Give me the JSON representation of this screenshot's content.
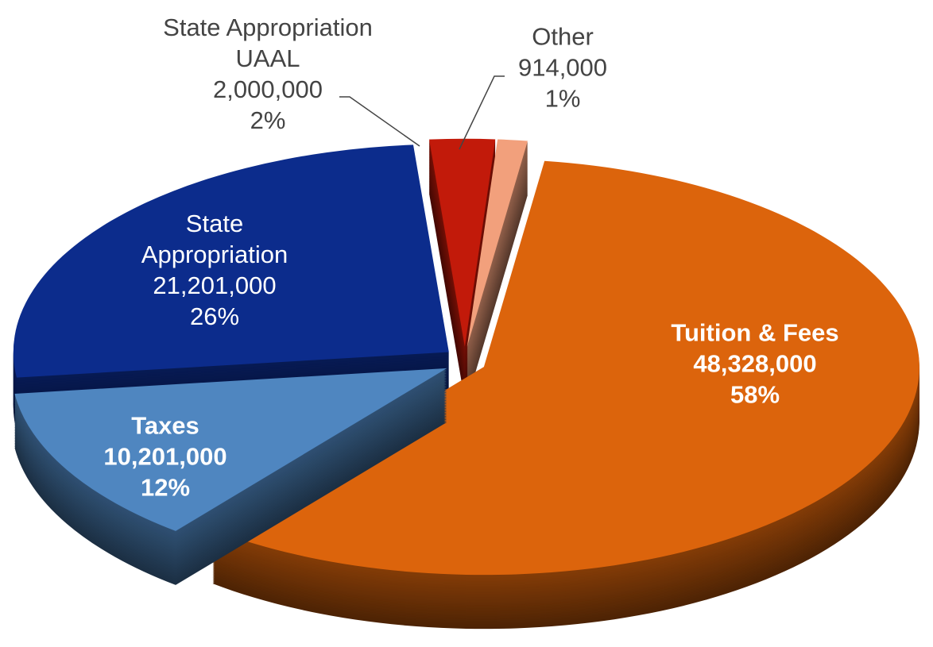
{
  "chart_data": {
    "type": "pie",
    "categories": [
      "Tuition & Fees",
      "Taxes",
      "State Appropriation",
      "State Appropriation UAAL",
      "Other"
    ],
    "values": [
      48328000,
      10201000,
      21201000,
      2000000,
      914000
    ],
    "value_labels": [
      "48,328,000",
      "10,201,000",
      "21,201,000",
      "2,000,000",
      "914,000"
    ],
    "percent_labels": [
      "58%",
      "12%",
      "26%",
      "2%",
      "1%"
    ],
    "colors": [
      "#dc640c",
      "#4f86c0",
      "#0c2c8c",
      "#c21a0a",
      "#f2a07c"
    ]
  }
}
